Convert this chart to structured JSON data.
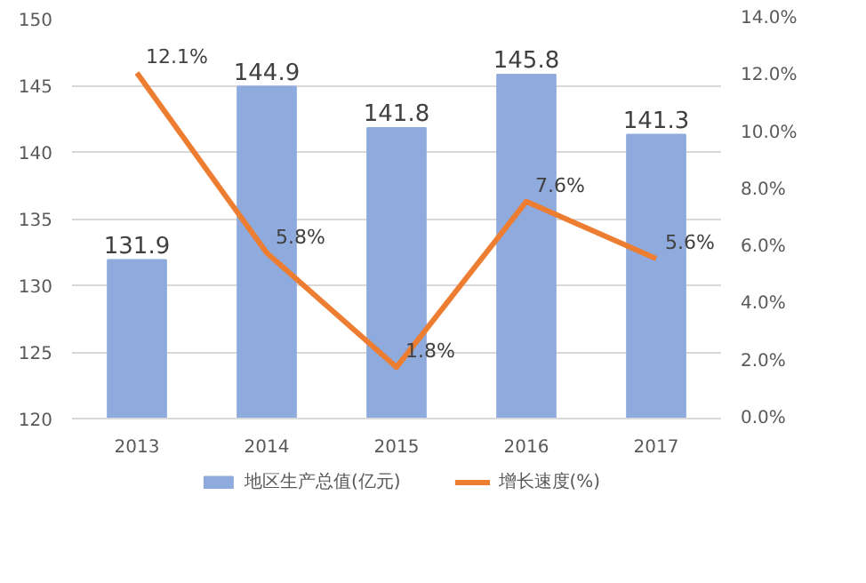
{
  "chart_data": {
    "type": "bar",
    "categories": [
      "2013",
      "2014",
      "2015",
      "2016",
      "2017"
    ],
    "series": [
      {
        "name": "地区生产总值(亿元)",
        "color": "#8faadc",
        "values": [
          131.9,
          144.9,
          141.8,
          145.8,
          141.3
        ],
        "value_labels": [
          "131.9",
          "144.9",
          "141.8",
          "145.8",
          "141.3"
        ]
      },
      {
        "name": "增长速度(%)",
        "type": "line",
        "axis": "y2",
        "color": "#ed7d31",
        "values": [
          12.1,
          5.8,
          1.8,
          7.6,
          5.6
        ],
        "value_labels": [
          "12.1%",
          "5.8%",
          "1.8%",
          "7.6%",
          "5.6%"
        ]
      }
    ],
    "ylim": [
      120,
      150
    ],
    "yticks": [
      120,
      125,
      130,
      135,
      140,
      145,
      150
    ],
    "y2lim": [
      0,
      14
    ],
    "y2ticks": [
      {
        "value": 0,
        "label": "0.0%"
      },
      {
        "value": 2,
        "label": "2.0%"
      },
      {
        "value": 4,
        "label": "4.0%"
      },
      {
        "value": 6,
        "label": "6.0%"
      },
      {
        "value": 8,
        "label": "8.0%"
      },
      {
        "value": 10,
        "label": "10.0%"
      },
      {
        "value": 12,
        "label": "12.0%"
      },
      {
        "value": 14,
        "label": "14.0%"
      }
    ],
    "grid": "y",
    "legend": "bottom",
    "marker": "none",
    "line_style": "solid"
  }
}
